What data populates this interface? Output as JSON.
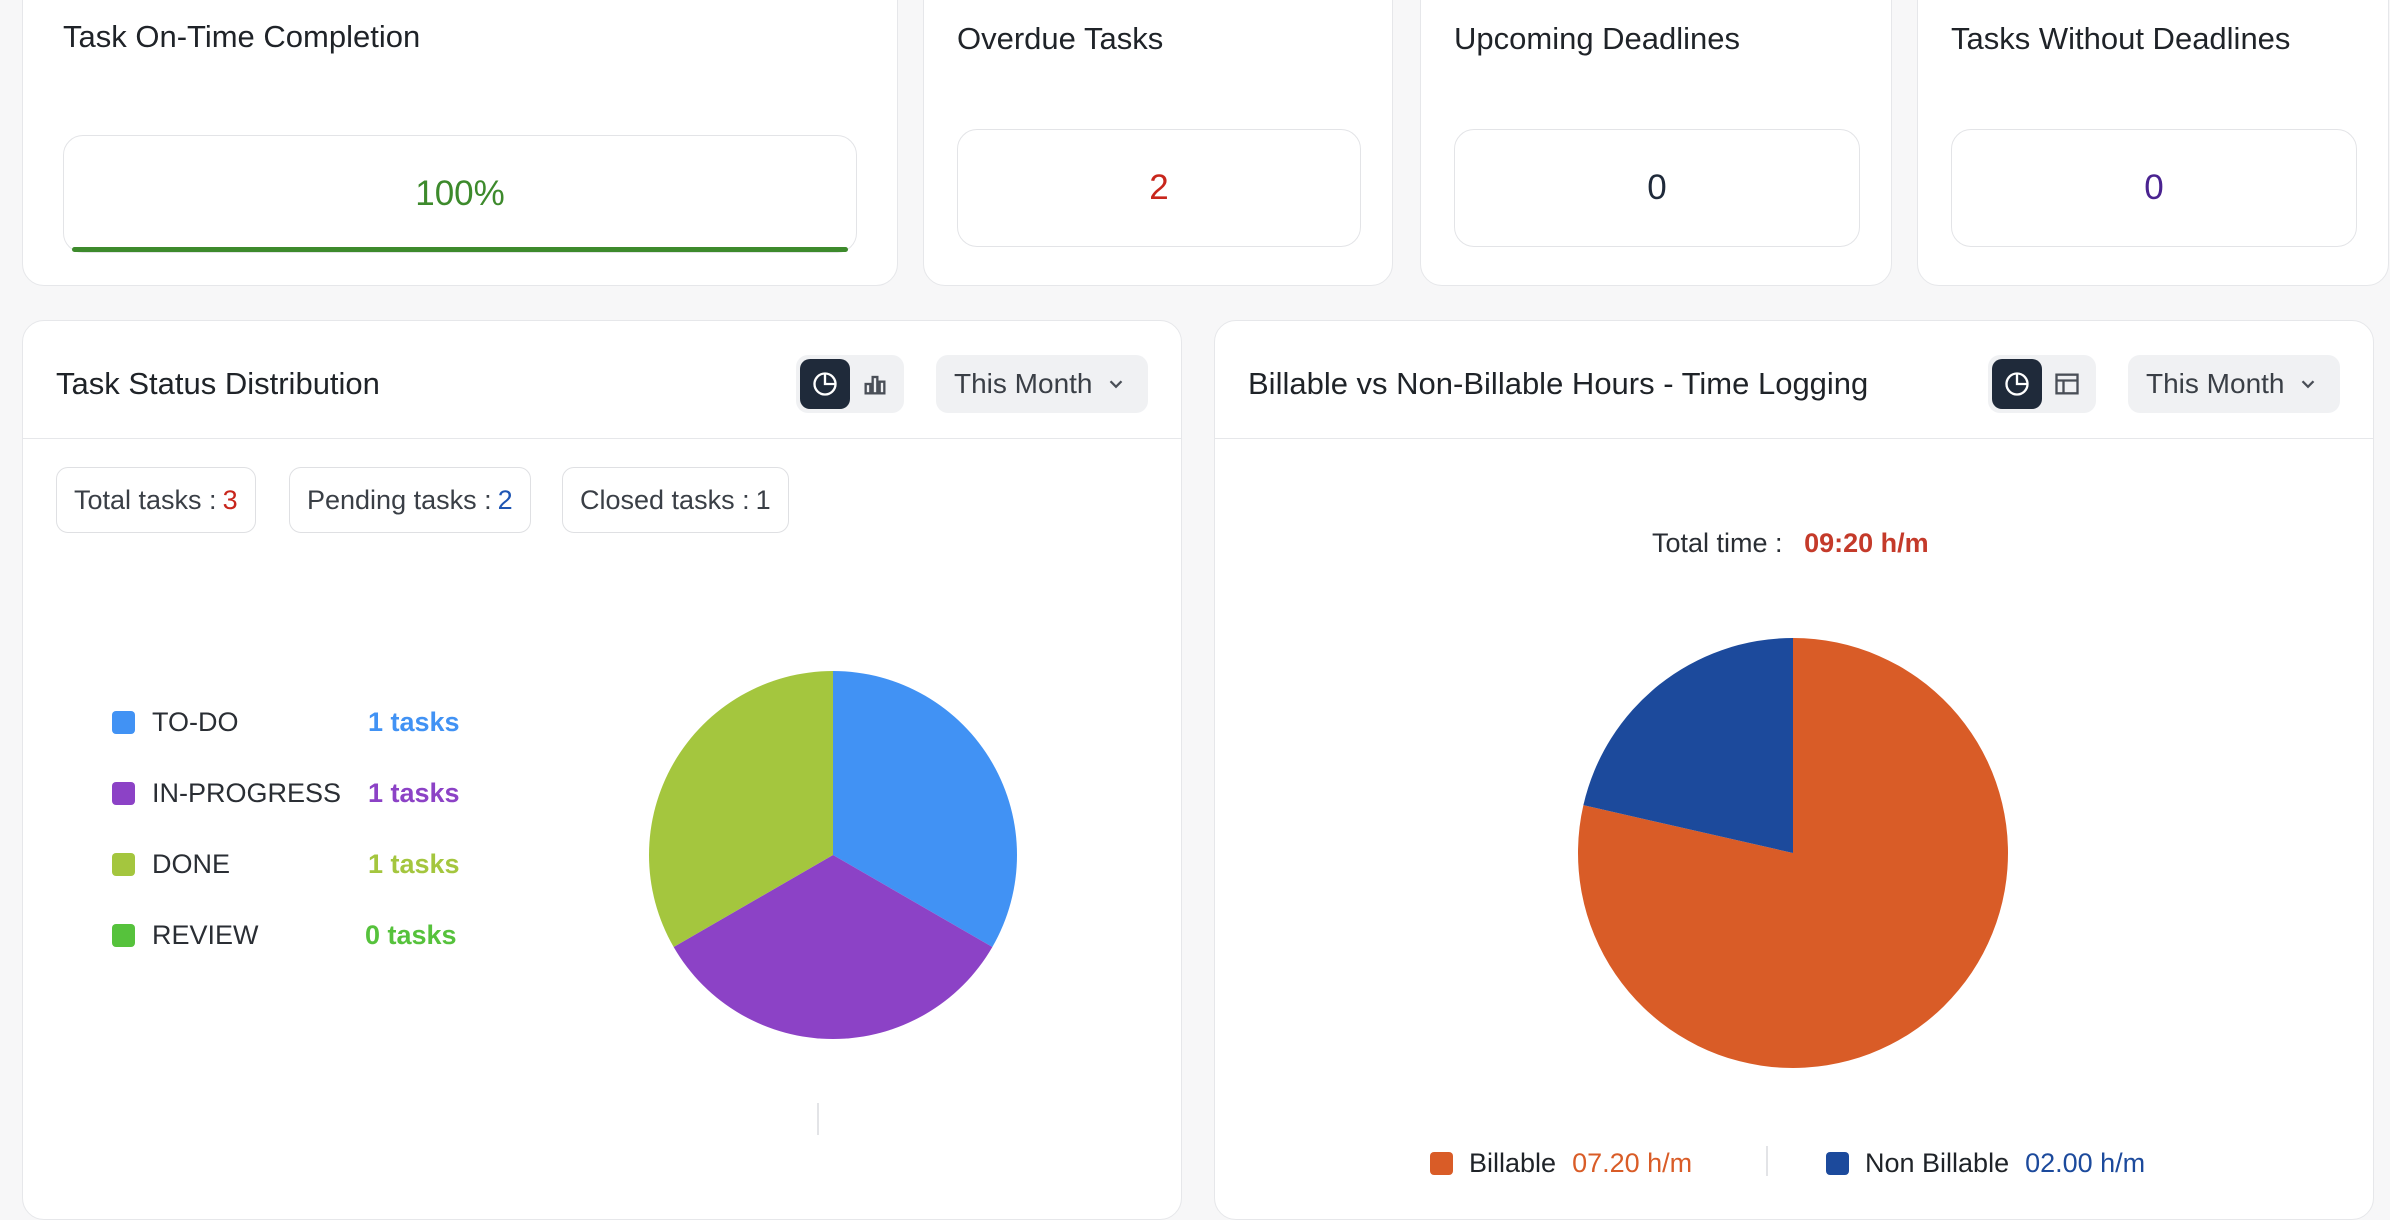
{
  "kpis": {
    "on_time": {
      "title": "Task On-Time Completion",
      "value": "100%",
      "progress": 1.0,
      "color": "#3d8a2c"
    },
    "overdue": {
      "title": "Overdue Tasks",
      "value": "2",
      "color": "#c8261c"
    },
    "upcoming": {
      "title": "Upcoming Deadlines",
      "value": "0",
      "color": "#1f2a3a"
    },
    "without": {
      "title": "Tasks Without Deadlines",
      "value": "0",
      "color": "#4a2390"
    }
  },
  "status_panel": {
    "title": "Task Status Distribution",
    "period": "This Month",
    "views": [
      "pie-chart-icon",
      "bar-chart-icon"
    ],
    "stats": [
      {
        "label": "Total tasks :",
        "value": "3",
        "color": "#c8261c"
      },
      {
        "label": "Pending tasks :",
        "value": "2",
        "color": "#1e55b3"
      },
      {
        "label": "Closed tasks :",
        "value": "1",
        "color": "#3a3f46"
      }
    ],
    "legend": [
      {
        "label": "TO-DO",
        "count": "1 tasks",
        "color": "#4192f4"
      },
      {
        "label": "IN-PROGRESS",
        "count": "1 tasks",
        "color": "#8c42c6"
      },
      {
        "label": "DONE",
        "count": "1 tasks",
        "color": "#a4c63e"
      },
      {
        "label": "REVIEW",
        "count": "0 tasks",
        "color": "#56c23c"
      }
    ]
  },
  "hours_panel": {
    "title": "Billable vs Non-Billable Hours - Time Logging",
    "period": "This Month",
    "views": [
      "pie-chart-icon",
      "table-icon"
    ],
    "total_label": "Total time :",
    "total_value": "09:20 h/m",
    "legend": [
      {
        "label": "Billable",
        "value": "07.20 h/m",
        "color": "#d95c27",
        "value_color": "#d95c27"
      },
      {
        "label": "Non Billable",
        "value": "02.00 h/m",
        "color": "#1c4a9c",
        "value_color": "#1c4a9c"
      }
    ]
  },
  "chart_data": [
    {
      "type": "pie",
      "categories": [
        "TO-DO",
        "IN-PROGRESS",
        "DONE",
        "REVIEW"
      ],
      "values": [
        1,
        1,
        1,
        0
      ],
      "colors": [
        "#4192f4",
        "#8c42c6",
        "#a4c63e",
        "#56c23c"
      ]
    },
    {
      "type": "pie",
      "categories": [
        "Billable",
        "Non Billable"
      ],
      "values": [
        440,
        120
      ],
      "colors": [
        "#d95c27",
        "#1c4a9c"
      ]
    }
  ]
}
